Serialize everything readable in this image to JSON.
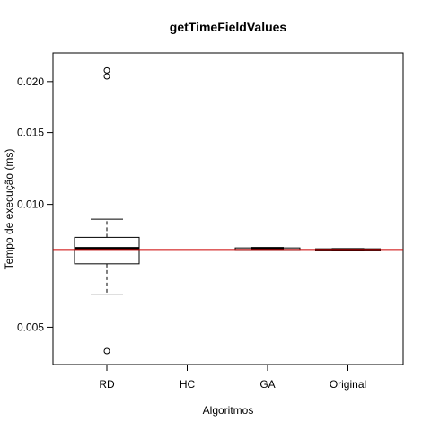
{
  "chart_data": {
    "type": "boxplot",
    "title": "getTimeFieldValues",
    "xlabel": "Algoritmos",
    "ylabel": "Tempo de execução (ms)",
    "y_scale": "log",
    "ylim": [
      0.00405,
      0.0235
    ],
    "y_ticks": [
      {
        "value": 0.005,
        "label": "0.005"
      },
      {
        "value": 0.01,
        "label": "0.010"
      },
      {
        "value": 0.015,
        "label": "0.015"
      },
      {
        "value": 0.02,
        "label": "0.020"
      }
    ],
    "categories": [
      "RD",
      "HC",
      "GA",
      "Original"
    ],
    "boxes": [
      {
        "category": "RD",
        "whisker_low": 0.006,
        "q1": 0.00715,
        "median": 0.0078,
        "q3": 0.0083,
        "whisker_high": 0.0092,
        "outliers": [
          0.00437,
          0.0206,
          0.0213
        ]
      },
      {
        "category": "HC",
        "empty": true
      },
      {
        "category": "GA",
        "whisker_low": 0.00775,
        "q1": 0.00775,
        "median": 0.0078,
        "q3": 0.00782,
        "whisker_high": 0.00782,
        "outliers": []
      },
      {
        "category": "Original",
        "whisker_low": 0.00772,
        "q1": 0.00772,
        "median": 0.00775,
        "q3": 0.00778,
        "whisker_high": 0.00778,
        "outliers": []
      }
    ],
    "reference_line": {
      "value": 0.00775,
      "color": "#cc0000"
    },
    "grid": false,
    "legend": "none"
  }
}
